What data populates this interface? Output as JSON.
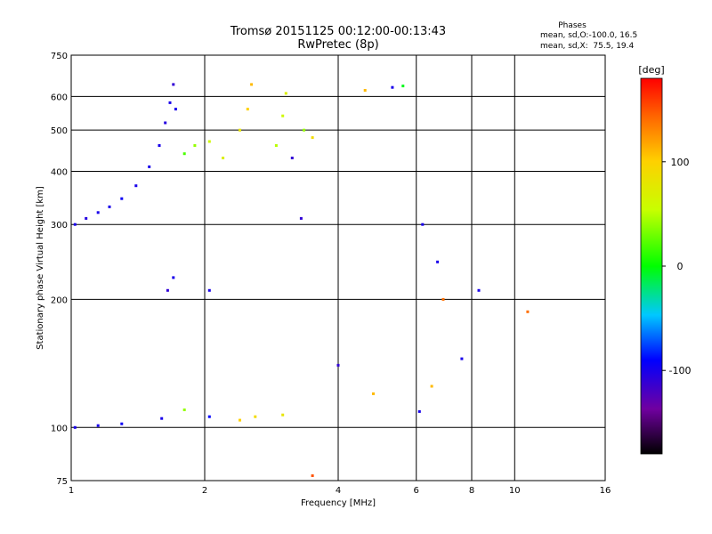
{
  "chart_data": {
    "type": "scatter",
    "title": "Tromsø 20151125 00:12:00-00:13:43",
    "subtitle": "RwPretec (8p)",
    "xlabel": "Frequency [MHz]",
    "ylabel": "Stationary phase Virtual Height [km]",
    "x_scale": "log",
    "y_scale": "log",
    "xlim": [
      1,
      16
    ],
    "ylim": [
      75,
      750
    ],
    "x_ticks": [
      1,
      2,
      4,
      6,
      8,
      10,
      16
    ],
    "x_tick_labels": [
      "1",
      "2",
      "4",
      "6",
      "8",
      "10",
      "16"
    ],
    "y_ticks": [
      75,
      100,
      200,
      300,
      400,
      500,
      600,
      750
    ],
    "y_tick_labels": [
      "75",
      "100",
      "200",
      "300",
      "400",
      "500",
      "600",
      "750"
    ],
    "grid": true,
    "stats": {
      "heading": "Phases",
      "line1": "mean, sd,O:-100.0, 16.5",
      "line2": "mean, sd,X:  75.5, 19.4"
    },
    "colorbar": {
      "label": "[deg]",
      "range": [
        -180,
        180
      ],
      "ticks": [
        100,
        0,
        -100
      ],
      "tick_labels": [
        "100",
        "0",
        "-100"
      ],
      "colormap": "rainbow"
    },
    "series": [
      {
        "points": [
          {
            "f": 1.02,
            "h": 300,
            "p": -100
          },
          {
            "f": 1.08,
            "h": 310,
            "p": -105
          },
          {
            "f": 1.15,
            "h": 320,
            "p": -100
          },
          {
            "f": 1.22,
            "h": 330,
            "p": -100
          },
          {
            "f": 1.3,
            "h": 345,
            "p": -95
          },
          {
            "f": 1.4,
            "h": 370,
            "p": -100
          },
          {
            "f": 1.5,
            "h": 410,
            "p": -100
          },
          {
            "f": 1.58,
            "h": 460,
            "p": -100
          },
          {
            "f": 1.63,
            "h": 520,
            "p": -105
          },
          {
            "f": 1.67,
            "h": 580,
            "p": -100
          },
          {
            "f": 1.7,
            "h": 640,
            "p": -110
          },
          {
            "f": 1.72,
            "h": 560,
            "p": -100
          },
          {
            "f": 1.8,
            "h": 440,
            "p": 20
          },
          {
            "f": 1.9,
            "h": 460,
            "p": 40
          },
          {
            "f": 2.05,
            "h": 470,
            "p": 60
          },
          {
            "f": 2.2,
            "h": 430,
            "p": 70
          },
          {
            "f": 2.4,
            "h": 500,
            "p": 80
          },
          {
            "f": 2.5,
            "h": 560,
            "p": 100
          },
          {
            "f": 2.55,
            "h": 640,
            "p": 110
          },
          {
            "f": 2.9,
            "h": 460,
            "p": 50
          },
          {
            "f": 3.0,
            "h": 540,
            "p": 60
          },
          {
            "f": 3.05,
            "h": 610,
            "p": 70
          },
          {
            "f": 3.15,
            "h": 430,
            "p": -110
          },
          {
            "f": 3.35,
            "h": 500,
            "p": 40
          },
          {
            "f": 3.5,
            "h": 480,
            "p": 90
          },
          {
            "f": 4.6,
            "h": 620,
            "p": 110
          },
          {
            "f": 5.3,
            "h": 630,
            "p": -100
          },
          {
            "f": 5.6,
            "h": 635,
            "p": -5
          },
          {
            "f": 1.02,
            "h": 100,
            "p": -100
          },
          {
            "f": 1.15,
            "h": 101,
            "p": -100
          },
          {
            "f": 1.3,
            "h": 102,
            "p": -95
          },
          {
            "f": 1.6,
            "h": 105,
            "p": -100
          },
          {
            "f": 1.8,
            "h": 110,
            "p": 40
          },
          {
            "f": 2.05,
            "h": 106,
            "p": -90
          },
          {
            "f": 2.4,
            "h": 104,
            "p": 100
          },
          {
            "f": 2.6,
            "h": 106,
            "p": 90
          },
          {
            "f": 3.0,
            "h": 107,
            "p": 80
          },
          {
            "f": 1.65,
            "h": 210,
            "p": -110
          },
          {
            "f": 1.7,
            "h": 225,
            "p": -100
          },
          {
            "f": 2.05,
            "h": 210,
            "p": -100
          },
          {
            "f": 3.3,
            "h": 310,
            "p": -110
          },
          {
            "f": 6.2,
            "h": 300,
            "p": -100
          },
          {
            "f": 6.7,
            "h": 245,
            "p": -100
          },
          {
            "f": 6.9,
            "h": 200,
            "p": 140
          },
          {
            "f": 7.6,
            "h": 145,
            "p": -100
          },
          {
            "f": 8.3,
            "h": 210,
            "p": -100
          },
          {
            "f": 10.7,
            "h": 187,
            "p": 140
          },
          {
            "f": 4.0,
            "h": 140,
            "p": -110
          },
          {
            "f": 4.8,
            "h": 120,
            "p": 110
          },
          {
            "f": 6.5,
            "h": 125,
            "p": 110
          },
          {
            "f": 6.1,
            "h": 109,
            "p": -100
          },
          {
            "f": 3.5,
            "h": 77,
            "p": 150
          }
        ]
      }
    ]
  }
}
